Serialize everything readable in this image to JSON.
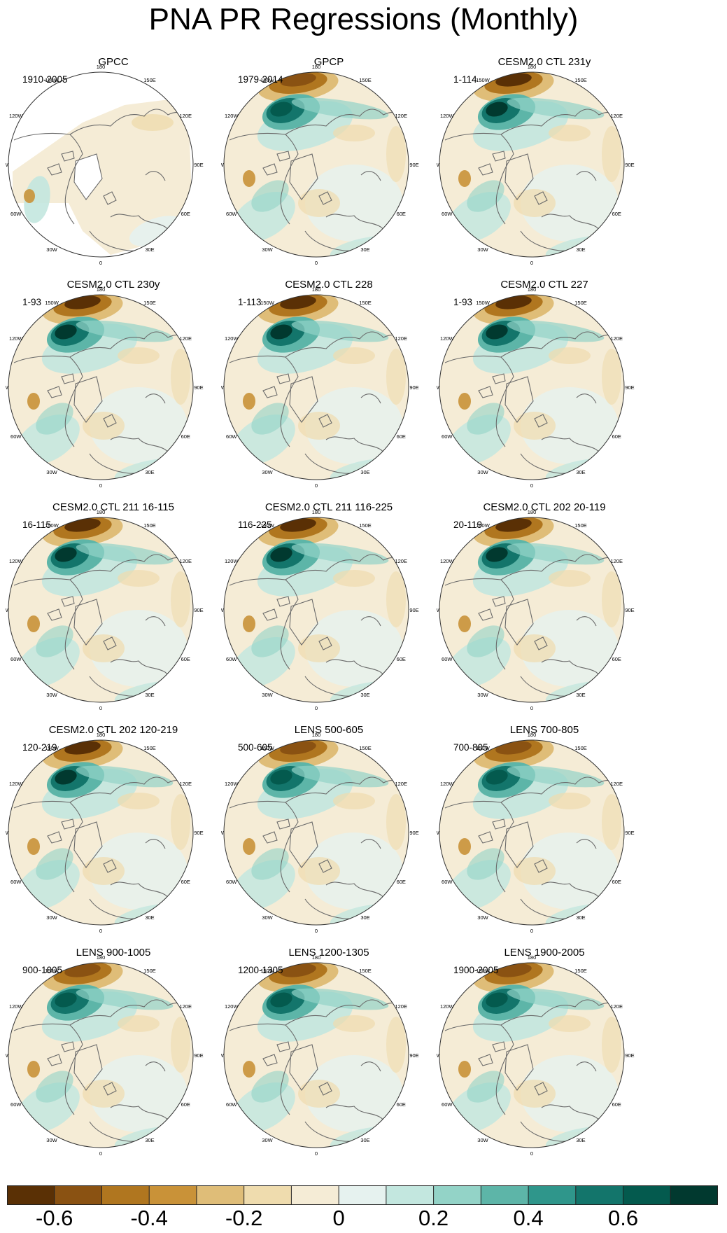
{
  "title": "PNA PR Regressions (Monthly)",
  "lon_labels": [
    "180",
    "150E",
    "120E",
    "90E",
    "60E",
    "30E",
    "0",
    "30W",
    "60W",
    "90W",
    "120W",
    "150W"
  ],
  "panels": [
    {
      "title": "GPCC",
      "period": "1910-2005",
      "pattern": "gpcc"
    },
    {
      "title": "GPCP",
      "period": "1979-2014",
      "pattern": "obs"
    },
    {
      "title": "CESM2.0 CTL 231y",
      "period": "1-114",
      "pattern": "model"
    },
    {
      "title": "CESM2.0 CTL 230y",
      "period": "1-93",
      "pattern": "model"
    },
    {
      "title": "CESM2.0 CTL 228",
      "period": "1-113",
      "pattern": "model"
    },
    {
      "title": "CESM2.0 CTL 227",
      "period": "1-93",
      "pattern": "model"
    },
    {
      "title": "CESM2.0 CTL 211 16-115",
      "period": "16-115",
      "pattern": "model"
    },
    {
      "title": "CESM2.0 CTL 211 116-225",
      "period": "116-225",
      "pattern": "model"
    },
    {
      "title": "CESM2.0 CTL 202 20-119",
      "period": "20-119",
      "pattern": "model"
    },
    {
      "title": "CESM2.0 CTL 202 120-219",
      "period": "120-219",
      "pattern": "model"
    },
    {
      "title": "LENS 500-605",
      "period": "500-605",
      "pattern": "lens"
    },
    {
      "title": "LENS 700-805",
      "period": "700-805",
      "pattern": "lens"
    },
    {
      "title": "LENS 900-1005",
      "period": "900-1005",
      "pattern": "lens"
    },
    {
      "title": "LENS 1200-1305",
      "period": "1200-1305",
      "pattern": "lens"
    },
    {
      "title": "LENS 1900-2005",
      "period": "1900-2005",
      "pattern": "lens"
    }
  ],
  "colorbar": {
    "colors": [
      "#5a3005",
      "#8a5212",
      "#b0761f",
      "#c99238",
      "#dfbd78",
      "#efdcae",
      "#f5ecd6",
      "#e6f2ef",
      "#c3e7df",
      "#93d3c7",
      "#5db5a8",
      "#2f968b",
      "#13756b",
      "#045a4e",
      "#01392f"
    ],
    "tick_values": [
      -0.6,
      -0.4,
      -0.2,
      0,
      0.2,
      0.4,
      0.6
    ],
    "tick_labels": [
      "-0.6",
      "-0.4",
      "-0.2",
      "0",
      "0.2",
      "0.4",
      "0.6"
    ],
    "range": [
      -0.7,
      0.8
    ]
  }
}
